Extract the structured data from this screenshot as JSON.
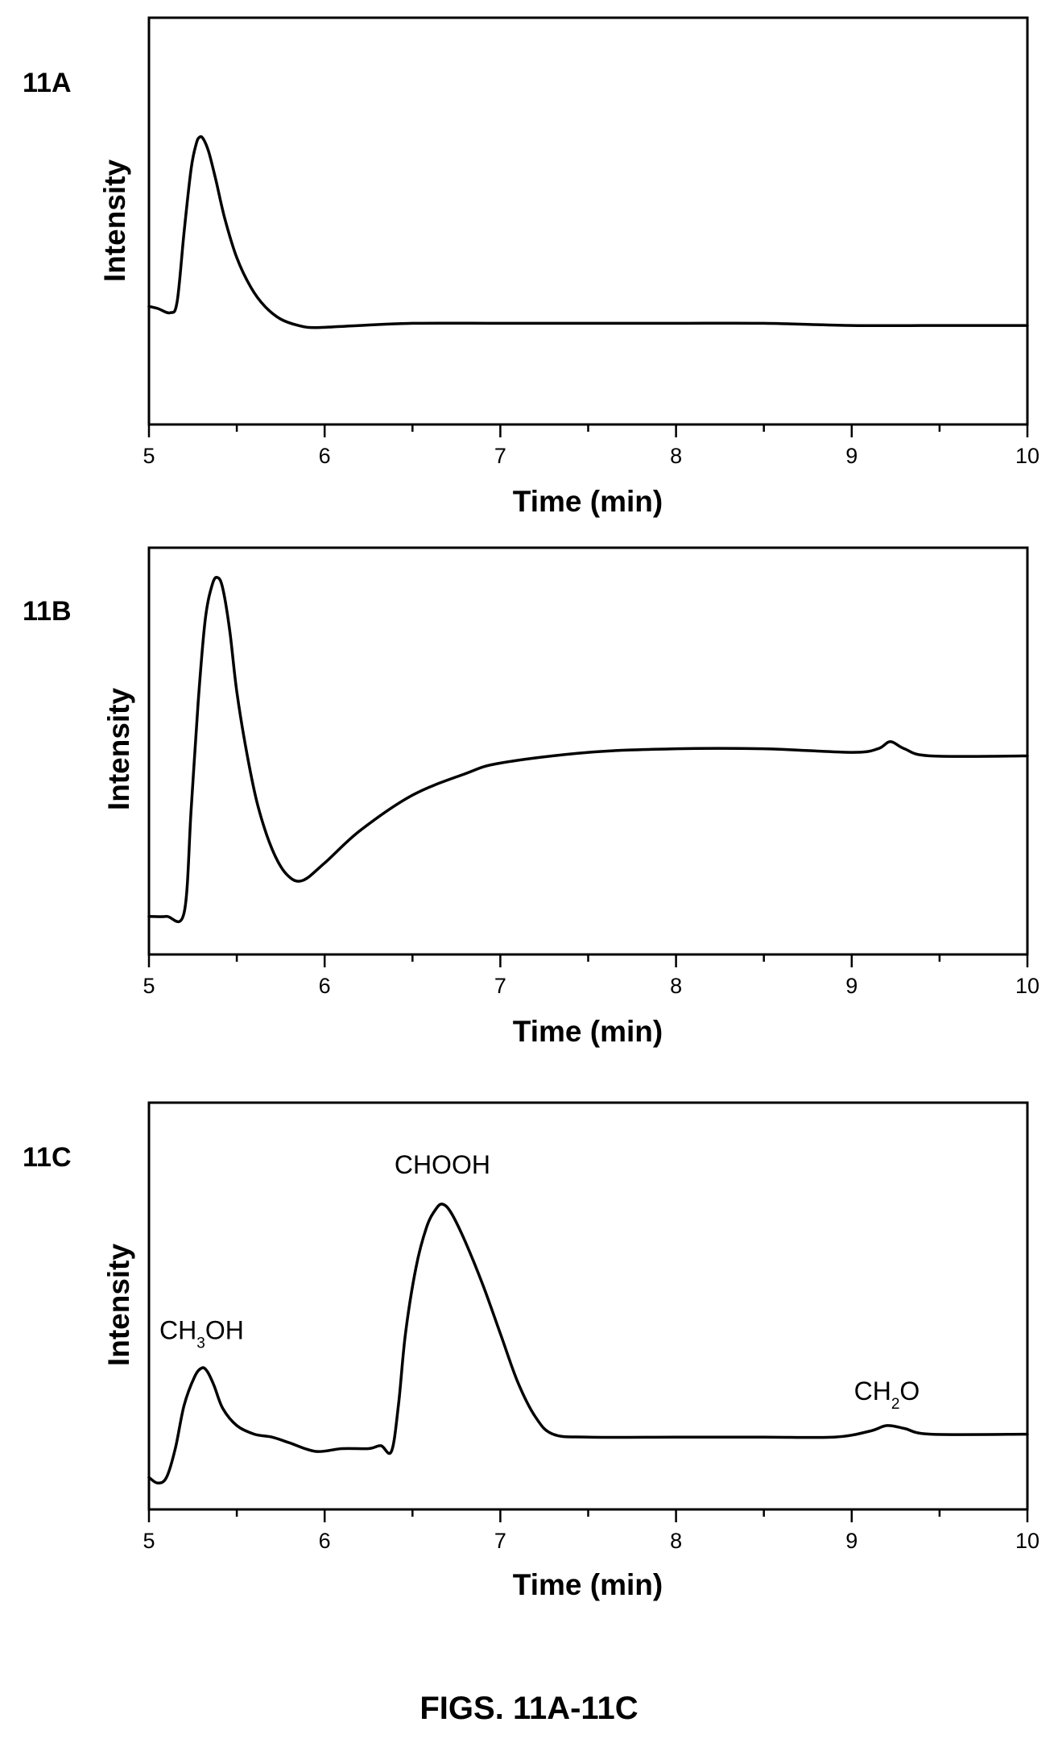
{
  "figure": {
    "caption": "FIGS. 11A-11C"
  },
  "chart_data": [
    {
      "type": "line",
      "panel": "11A",
      "xlabel": "Time (min)",
      "ylabel": "Intensity",
      "xlim": [
        5,
        10
      ],
      "ylim": [
        0,
        1
      ],
      "xticks": [
        5,
        6,
        7,
        8,
        9,
        10
      ],
      "xtick_labels": [
        "5",
        "6",
        "7",
        "8",
        "9",
        "10"
      ],
      "yticks_labeled": false,
      "grid": false,
      "series": [
        {
          "x": [
            5.0,
            5.05,
            5.12,
            5.16,
            5.2,
            5.24,
            5.27,
            5.29,
            5.31,
            5.34,
            5.38,
            5.43,
            5.5,
            5.58,
            5.66,
            5.75,
            5.85,
            5.95,
            6.2,
            6.5,
            7.0,
            7.5,
            8.0,
            8.5,
            9.0,
            9.5,
            10.0
          ],
          "y": [
            0.2,
            0.19,
            0.17,
            0.22,
            0.55,
            0.85,
            0.97,
            1.0,
            0.99,
            0.93,
            0.8,
            0.62,
            0.43,
            0.29,
            0.2,
            0.14,
            0.11,
            0.1,
            0.11,
            0.12,
            0.12,
            0.12,
            0.12,
            0.12,
            0.11,
            0.11,
            0.11
          ]
        }
      ],
      "annotations": []
    },
    {
      "type": "line",
      "panel": "11B",
      "xlabel": "Time (min)",
      "ylabel": "Intensity",
      "xlim": [
        5,
        10
      ],
      "ylim": [
        0,
        1
      ],
      "xticks": [
        5,
        6,
        7,
        8,
        9,
        10
      ],
      "xtick_labels": [
        "5",
        "6",
        "7",
        "8",
        "9",
        "10"
      ],
      "yticks_labeled": false,
      "grid": false,
      "series": [
        {
          "x": [
            5.0,
            5.1,
            5.2,
            5.24,
            5.28,
            5.32,
            5.36,
            5.39,
            5.42,
            5.46,
            5.5,
            5.56,
            5.62,
            5.7,
            5.78,
            5.87,
            6.0,
            6.2,
            6.5,
            6.8,
            7.0,
            7.5,
            8.0,
            8.5,
            9.0,
            9.15,
            9.22,
            9.3,
            9.45,
            10.0
          ],
          "y": [
            0.05,
            0.05,
            0.06,
            0.35,
            0.65,
            0.88,
            0.98,
            1.0,
            0.97,
            0.85,
            0.68,
            0.5,
            0.36,
            0.24,
            0.17,
            0.15,
            0.2,
            0.29,
            0.39,
            0.45,
            0.48,
            0.51,
            0.52,
            0.52,
            0.51,
            0.52,
            0.54,
            0.52,
            0.5,
            0.5
          ]
        }
      ],
      "annotations": []
    },
    {
      "type": "line",
      "panel": "11C",
      "xlabel": "Time (min)",
      "ylabel": "Intensity",
      "xlim": [
        5,
        10
      ],
      "ylim": [
        0,
        1
      ],
      "xticks": [
        5,
        6,
        7,
        8,
        9,
        10
      ],
      "xtick_labels": [
        "5",
        "6",
        "7",
        "8",
        "9",
        "10"
      ],
      "yticks_labeled": false,
      "grid": false,
      "series": [
        {
          "x": [
            5.0,
            5.05,
            5.1,
            5.15,
            5.2,
            5.26,
            5.3,
            5.33,
            5.37,
            5.42,
            5.5,
            5.6,
            5.7,
            5.8,
            5.95,
            6.1,
            6.25,
            6.32,
            6.38,
            6.42,
            6.46,
            6.52,
            6.58,
            6.63,
            6.67,
            6.72,
            6.8,
            6.9,
            7.0,
            7.1,
            7.2,
            7.3,
            7.5,
            8.0,
            8.5,
            8.9,
            9.1,
            9.2,
            9.3,
            9.45,
            10.0
          ],
          "y": [
            0.05,
            0.03,
            0.05,
            0.15,
            0.3,
            0.4,
            0.43,
            0.42,
            0.37,
            0.29,
            0.23,
            0.2,
            0.19,
            0.17,
            0.14,
            0.15,
            0.15,
            0.16,
            0.14,
            0.3,
            0.55,
            0.78,
            0.92,
            0.98,
            1.0,
            0.97,
            0.87,
            0.72,
            0.55,
            0.38,
            0.26,
            0.2,
            0.19,
            0.19,
            0.19,
            0.19,
            0.21,
            0.23,
            0.22,
            0.2,
            0.2
          ]
        }
      ],
      "annotations": [
        {
          "text": "CH",
          "sub": "3",
          "text2": "OH",
          "x": 5.3,
          "y": 0.43
        },
        {
          "text": "CHOOH",
          "sub": "",
          "text2": "",
          "x": 6.67,
          "y": 1.0
        },
        {
          "text": "CH",
          "sub": "2",
          "text2": "O",
          "x": 9.2,
          "y": 0.23
        }
      ]
    }
  ]
}
